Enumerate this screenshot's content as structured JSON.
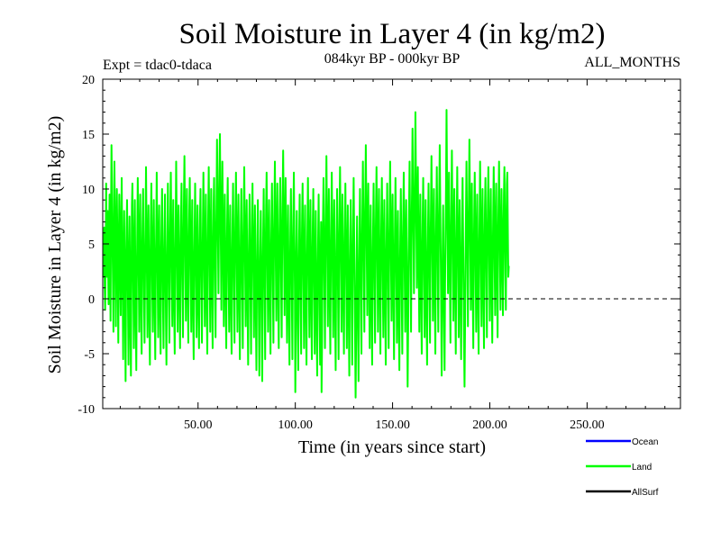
{
  "chart_data": {
    "type": "line",
    "title": "Soil Moisture in Layer 4 (in kg/m2)",
    "subtitle_left": "Expt = tdac0-tdaca",
    "subtitle_center": "084kyr BP - 000kyr BP",
    "subtitle_right": "ALL_MONTHS",
    "xlabel": "Time (in years since start)",
    "ylabel": "Soil Moisture in Layer 4 (in kg/m2)",
    "xlim": [
      1,
      298
    ],
    "ylim": [
      -10,
      20
    ],
    "xticks": [
      50,
      100,
      150,
      200,
      250
    ],
    "xtick_labels": [
      "50.00",
      "100.00",
      "150.00",
      "200.00",
      "250.00"
    ],
    "yticks": [
      -10,
      -5,
      0,
      5,
      10,
      15,
      20
    ],
    "ytick_labels": [
      "-10",
      "-5",
      "0",
      "5",
      "10",
      "15",
      "20"
    ],
    "reference_line": 0,
    "series": [
      {
        "name": "Ocean",
        "color": "#0000ff",
        "values": []
      },
      {
        "name": "Land",
        "color": "#00ff00",
        "x_start": 1,
        "x_step": 0.25,
        "values": [
          3.5,
          5.0,
          2.0,
          6.5,
          1.0,
          -1.0,
          4.0,
          10.5,
          5.5,
          2.0,
          8.0,
          3.0,
          -0.5,
          6.0,
          9.5,
          4.5,
          -2.0,
          7.5,
          14.0,
          10.0,
          5.0,
          1.5,
          -3.0,
          6.0,
          12.5,
          8.0,
          3.0,
          -2.5,
          5.5,
          10.0,
          6.0,
          1.0,
          -4.0,
          4.0,
          9.5,
          7.0,
          2.0,
          -1.5,
          6.0,
          11.0,
          5.0,
          0.5,
          -5.5,
          3.5,
          8.0,
          4.0,
          -2.0,
          -7.5,
          1.5,
          6.5,
          9.0,
          4.0,
          -1.0,
          -6.0,
          3.0,
          7.5,
          2.5,
          -3.5,
          -7.0,
          2.0,
          8.5,
          10.5,
          5.0,
          0.0,
          -4.5,
          4.5,
          9.0,
          3.0,
          -2.5,
          -6.5,
          1.0,
          6.0,
          11.0,
          7.0,
          2.0,
          -3.0,
          5.0,
          9.5,
          4.0,
          -1.5,
          -5.0,
          3.5,
          7.0,
          10.0,
          4.5,
          -0.5,
          -4.0,
          2.0,
          6.5,
          12.0,
          7.0,
          1.5,
          -3.5,
          4.0,
          8.5,
          2.0,
          -2.5,
          -6.0,
          3.0,
          7.5,
          10.5,
          5.0,
          0.5,
          -3.0,
          4.5,
          9.0,
          3.5,
          -1.5,
          -5.5,
          2.5,
          6.5,
          11.5,
          6.0,
          1.0,
          -3.5,
          5.0,
          8.5,
          2.5,
          -2.0,
          -5.0,
          3.5,
          7.0,
          10.0,
          4.0,
          -1.0,
          -4.5,
          2.0,
          6.0,
          9.5,
          3.5,
          -2.0,
          -6.0,
          1.5,
          5.5,
          10.5,
          5.5,
          0.0,
          -4.0,
          3.0,
          8.0,
          11.5,
          6.5,
          1.5,
          -2.5,
          4.5,
          9.0,
          3.0,
          -1.5,
          -5.0,
          2.5,
          7.0,
          12.5,
          7.5,
          2.0,
          -3.0,
          5.0,
          8.5,
          3.5,
          -1.0,
          -4.5,
          3.0,
          7.5,
          10.5,
          5.0,
          0.5,
          -3.5,
          4.0,
          9.5,
          13.0,
          8.0,
          2.5,
          -2.0,
          5.5,
          10.0,
          4.5,
          -0.5,
          -4.0,
          3.5,
          8.0,
          11.0,
          6.0,
          1.5,
          -3.0,
          5.0,
          9.0,
          3.0,
          -2.0,
          -5.5,
          2.0,
          6.5,
          10.5,
          5.5,
          1.0,
          -3.5,
          4.5,
          8.5,
          2.5,
          -1.5,
          -4.5,
          3.5,
          7.5,
          10.0,
          4.5,
          0.0,
          -4.0,
          2.5,
          7.0,
          11.5,
          6.5,
          1.5,
          -2.5,
          5.0,
          9.5,
          3.5,
          -1.0,
          -5.0,
          3.0,
          8.0,
          12.0,
          7.0,
          2.0,
          -3.0,
          5.5,
          10.0,
          4.0,
          -0.5,
          -4.5,
          3.5,
          8.5,
          11.0,
          6.0,
          1.0,
          -3.5,
          4.5,
          9.0,
          14.5,
          10.0,
          5.0,
          0.5,
          6.5,
          11.5,
          15.0,
          9.5,
          4.0,
          -1.0,
          7.0,
          12.5,
          8.0,
          3.0,
          -2.5,
          5.0,
          9.5,
          4.5,
          -0.5,
          -4.5,
          3.0,
          7.5,
          11.0,
          5.5,
          1.0,
          -3.0,
          4.5,
          8.5,
          3.0,
          -1.5,
          -5.0,
          2.5,
          7.0,
          10.5,
          5.0,
          0.5,
          -4.0,
          4.0,
          8.0,
          11.5,
          6.5,
          1.5,
          -3.0,
          5.0,
          9.5,
          4.0,
          -1.0,
          -5.5,
          2.0,
          6.5,
          10.0,
          4.5,
          0.0,
          -4.5,
          3.5,
          8.0,
          12.0,
          7.0,
          2.0,
          -2.5,
          5.5,
          9.0,
          3.5,
          -1.5,
          -6.0,
          1.5,
          6.0,
          9.5,
          4.5,
          -0.5,
          -5.0,
          3.0,
          7.5,
          10.5,
          5.5,
          1.0,
          -3.5,
          4.5,
          8.5,
          2.5,
          -2.0,
          -6.5,
          1.0,
          5.5,
          9.0,
          3.5,
          -1.5,
          -7.0,
          0.5,
          4.5,
          8.0,
          3.0,
          -3.0,
          -7.5,
          1.5,
          6.0,
          10.0,
          5.0,
          -0.5,
          -5.5,
          3.5,
          8.5,
          11.5,
          6.5,
          1.5,
          -3.0,
          5.0,
          9.0,
          4.0,
          -1.0,
          -5.0,
          3.0,
          7.0,
          10.5,
          5.5,
          0.5,
          -4.0,
          4.0,
          8.5,
          12.5,
          7.5,
          2.5,
          -2.0,
          6.0,
          10.5,
          4.5,
          -0.5,
          -4.5,
          3.5,
          8.0,
          11.0,
          6.0,
          1.0,
          -3.5,
          5.0,
          9.5,
          13.5,
          8.5,
          3.5,
          -1.5,
          6.5,
          11.0,
          5.5,
          0.5,
          -4.0,
          4.0,
          8.5,
          3.0,
          -2.0,
          -6.0,
          2.0,
          6.5,
          10.0,
          5.0,
          -0.5,
          -5.5,
          3.0,
          7.5,
          11.5,
          6.0,
          1.0,
          -8.5,
          -3.0,
          4.0,
          8.0,
          2.5,
          -2.5,
          -6.5,
          1.5,
          6.0,
          9.5,
          4.5,
          -1.0,
          -5.0,
          3.0,
          7.5,
          10.5,
          5.0,
          0.5,
          -4.5,
          4.0,
          8.5,
          2.5,
          -2.0,
          -6.0,
          2.0,
          6.5,
          11.0,
          6.0,
          1.0,
          -3.5,
          5.0,
          9.0,
          3.5,
          -1.5,
          -5.5,
          2.5,
          7.0,
          10.0,
          4.5,
          -0.5,
          -5.0,
          3.5,
          8.0,
          2.0,
          -3.0,
          -7.0,
          1.0,
          5.5,
          9.5,
          4.0,
          -1.5,
          -6.0,
          2.5,
          7.0,
          -8.5,
          -4.0,
          3.0,
          7.5,
          11.0,
          5.5,
          0.5,
          -4.5,
          4.0,
          8.5,
          13.0,
          8.0,
          2.5,
          -2.5,
          5.5,
          10.0,
          4.0,
          -1.0,
          -5.0,
          3.0,
          7.5,
          11.5,
          6.5,
          1.0,
          -3.5,
          4.5,
          9.0,
          3.0,
          -2.0,
          -6.5,
          1.5,
          6.0,
          10.0,
          5.0,
          -0.5,
          -5.5,
          3.5,
          8.0,
          12.0,
          7.0,
          2.0,
          -3.0,
          5.0,
          9.5,
          4.0,
          -1.0,
          -5.0,
          3.0,
          7.0,
          10.5,
          5.0,
          0.5,
          -4.5,
          4.0,
          8.5,
          2.5,
          -2.5,
          -7.0,
          1.0,
          5.5,
          9.0,
          4.0,
          -1.5,
          -6.0,
          2.5,
          7.0,
          11.0,
          6.0,
          1.0,
          -4.0,
          -9.0,
          -4.0,
          3.0,
          7.5,
          2.0,
          -3.0,
          -7.5,
          1.0,
          6.0,
          10.0,
          5.0,
          -0.5,
          -5.0,
          3.5,
          8.0,
          12.5,
          7.5,
          2.0,
          -3.0,
          5.0,
          9.5,
          14.0,
          9.0,
          3.5,
          -1.5,
          6.0,
          10.5,
          5.0,
          0.0,
          -4.5,
          4.0,
          8.5,
          3.0,
          -2.0,
          -6.0,
          2.0,
          6.5,
          10.5,
          5.5,
          0.5,
          -4.0,
          4.0,
          8.5,
          12.0,
          7.0,
          2.0,
          -3.0,
          5.5,
          10.0,
          4.5,
          -0.5,
          -5.0,
          3.0,
          7.5,
          11.0,
          6.0,
          1.0,
          -3.5,
          4.5,
          9.0,
          3.5,
          -1.5,
          -6.0,
          2.0,
          6.5,
          10.5,
          5.0,
          0.0,
          -4.5,
          3.5,
          8.0,
          12.5,
          7.5,
          2.5,
          -2.0,
          5.5,
          9.5,
          4.0,
          -1.0,
          -5.5,
          2.5,
          7.0,
          11.0,
          6.0,
          1.0,
          -4.0,
          3.5,
          8.0,
          2.5,
          -2.5,
          -6.5,
          1.5,
          6.0,
          10.0,
          5.0,
          -0.5,
          -5.0,
          3.0,
          7.5,
          11.5,
          6.5,
          1.5,
          -3.0,
          5.0,
          9.0,
          3.5,
          -1.5,
          -8.0,
          -3.0,
          4.0,
          8.5,
          12.5,
          7.0,
          2.0,
          -3.0,
          5.5,
          10.0,
          15.5,
          10.5,
          5.5,
          0.5,
          6.5,
          11.0,
          17.0,
          11.5,
          6.0,
          1.0,
          7.0,
          12.0,
          6.5,
          1.5,
          -3.0,
          5.0,
          9.5,
          4.0,
          -1.0,
          -5.0,
          3.0,
          7.5,
          11.0,
          6.0,
          1.0,
          -3.5,
          4.5,
          9.0,
          3.0,
          -2.0,
          -6.0,
          2.0,
          6.5,
          10.5,
          5.5,
          0.5,
          -4.0,
          4.0,
          8.5,
          13.0,
          8.0,
          3.0,
          -2.0,
          5.5,
          10.0,
          4.5,
          -0.5,
          -5.0,
          3.5,
          8.0,
          12.0,
          7.0,
          2.0,
          -3.0,
          5.0,
          9.5,
          14.0,
          9.0,
          4.0,
          -1.0,
          -7.0,
          -2.0,
          4.5,
          8.5,
          3.0,
          -2.0,
          -6.5,
          1.5,
          6.0,
          10.5,
          17.2,
          11.0,
          5.5,
          0.5,
          6.5,
          11.5,
          6.0,
          1.0,
          -4.0,
          4.0,
          8.5,
          13.5,
          8.0,
          3.0,
          -2.0,
          5.5,
          10.0,
          4.5,
          -0.5,
          -5.0,
          3.0,
          7.5,
          12.0,
          7.0,
          1.5,
          -3.5,
          4.5,
          9.0,
          3.5,
          -1.5,
          -5.5,
          2.5,
          7.0,
          11.0,
          6.0,
          1.0,
          -4.0,
          -8.0,
          -3.0,
          3.5,
          8.0,
          12.5,
          7.5,
          2.5,
          -2.5,
          5.0,
          9.5,
          14.5,
          9.5,
          4.0,
          -1.0,
          6.0,
          10.5,
          5.0,
          0.0,
          -4.5,
          3.5,
          8.0,
          11.5,
          6.5,
          1.5,
          -3.0,
          5.0,
          9.5,
          4.0,
          -1.0,
          -5.0,
          3.0,
          7.5,
          12.5,
          7.5,
          2.0,
          -2.5,
          5.5,
          10.0,
          4.5,
          -0.5,
          -4.5,
          3.5,
          8.5,
          11.0,
          6.0,
          1.0,
          -3.5,
          4.5,
          9.0,
          12.0,
          7.0,
          2.5,
          -2.0,
          5.5,
          10.0,
          4.5,
          0.0,
          -4.0,
          3.5,
          8.0,
          12.0,
          7.5,
          2.5,
          -1.5,
          6.0,
          10.5,
          5.5,
          1.0,
          -3.5,
          4.5,
          9.0,
          12.5,
          8.0,
          3.0,
          -1.0,
          5.5,
          10.0,
          6.5,
          2.0,
          -1.5,
          5.0,
          9.5,
          12.0,
          7.0,
          2.5,
          -1.0,
          6.0,
          10.5,
          11.5,
          6.5,
          2.0,
          3.0
        ]
      },
      {
        "name": "AllSurf",
        "color": "#000000",
        "values": []
      }
    ],
    "legend": [
      "Ocean",
      "Land",
      "AllSurf"
    ],
    "legend_position": "bottom-right"
  }
}
